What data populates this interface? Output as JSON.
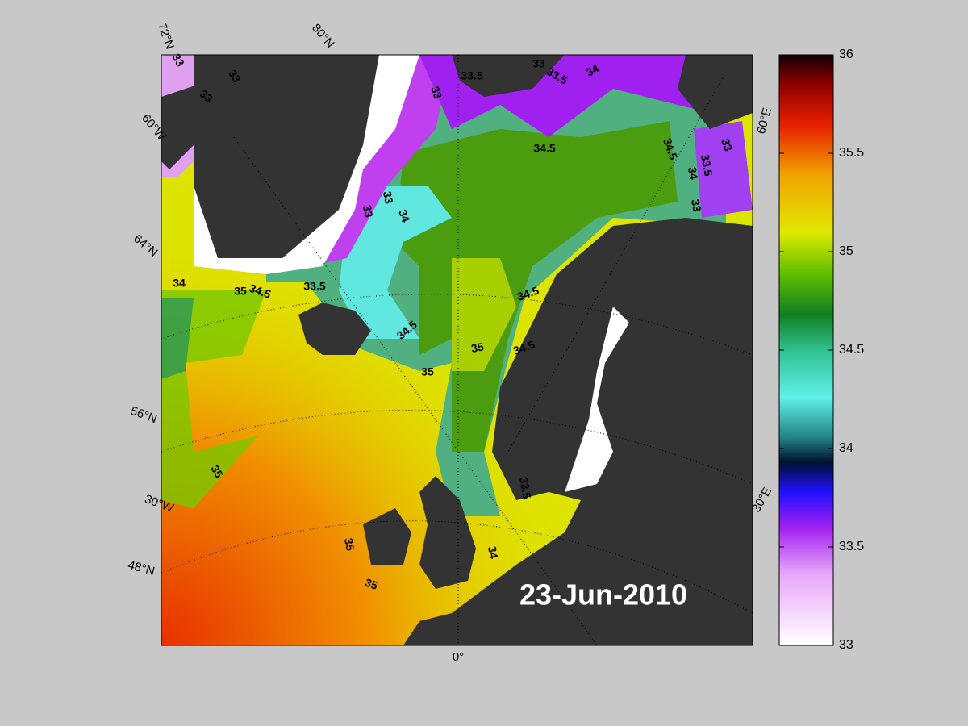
{
  "date_label": "23-Jun-2010",
  "graticule_labels": [
    "72°N",
    "80°N",
    "60°W",
    "64°N",
    "56°N",
    "30°W",
    "48°N",
    "0°",
    "30°E",
    "60°E"
  ],
  "contour_labels": [
    "33",
    "33",
    "33",
    "33.5",
    "33",
    "33",
    "33.5",
    "34",
    "34.5",
    "34.5",
    "34",
    "33.5",
    "33",
    "33",
    "33",
    "33",
    "34",
    "34",
    "35",
    "34.5",
    "33.5",
    "34.5",
    "35",
    "35",
    "34.5",
    "34.5",
    "35",
    "33.5",
    "34",
    "35",
    "35"
  ],
  "colorbar": {
    "clim": [
      33,
      36
    ],
    "ticks": [
      33,
      33.5,
      34,
      34.5,
      35,
      35.5,
      36
    ]
  }
}
